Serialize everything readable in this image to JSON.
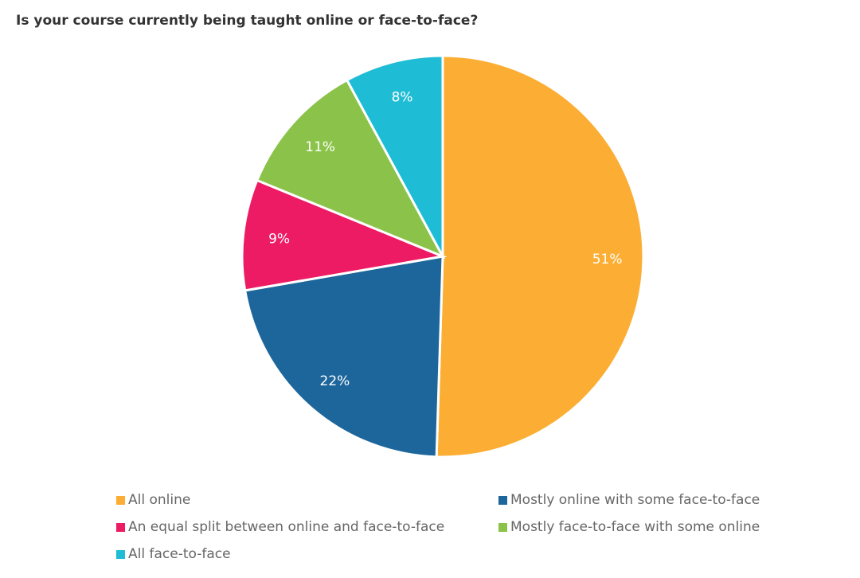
{
  "chart_data": {
    "type": "pie",
    "title": "Is your course currently being taught online or face-to-face?",
    "slices": [
      {
        "label": "All online",
        "value": 51,
        "display": "51%",
        "color": "#FBAE33"
      },
      {
        "label": "Mostly online with some face-to-face",
        "value": 22,
        "display": "22%",
        "color": "#1C669B"
      },
      {
        "label": "An equal split between online and face-to-face",
        "value": 9,
        "display": "9%",
        "color": "#EC1B63"
      },
      {
        "label": "Mostly face-to-face with some online",
        "value": 11,
        "display": "11%",
        "color": "#8BC34A"
      },
      {
        "label": "All face-to-face",
        "value": 8,
        "display": "8%",
        "color": "#1FBCD6"
      }
    ],
    "legend_position": "bottom"
  }
}
